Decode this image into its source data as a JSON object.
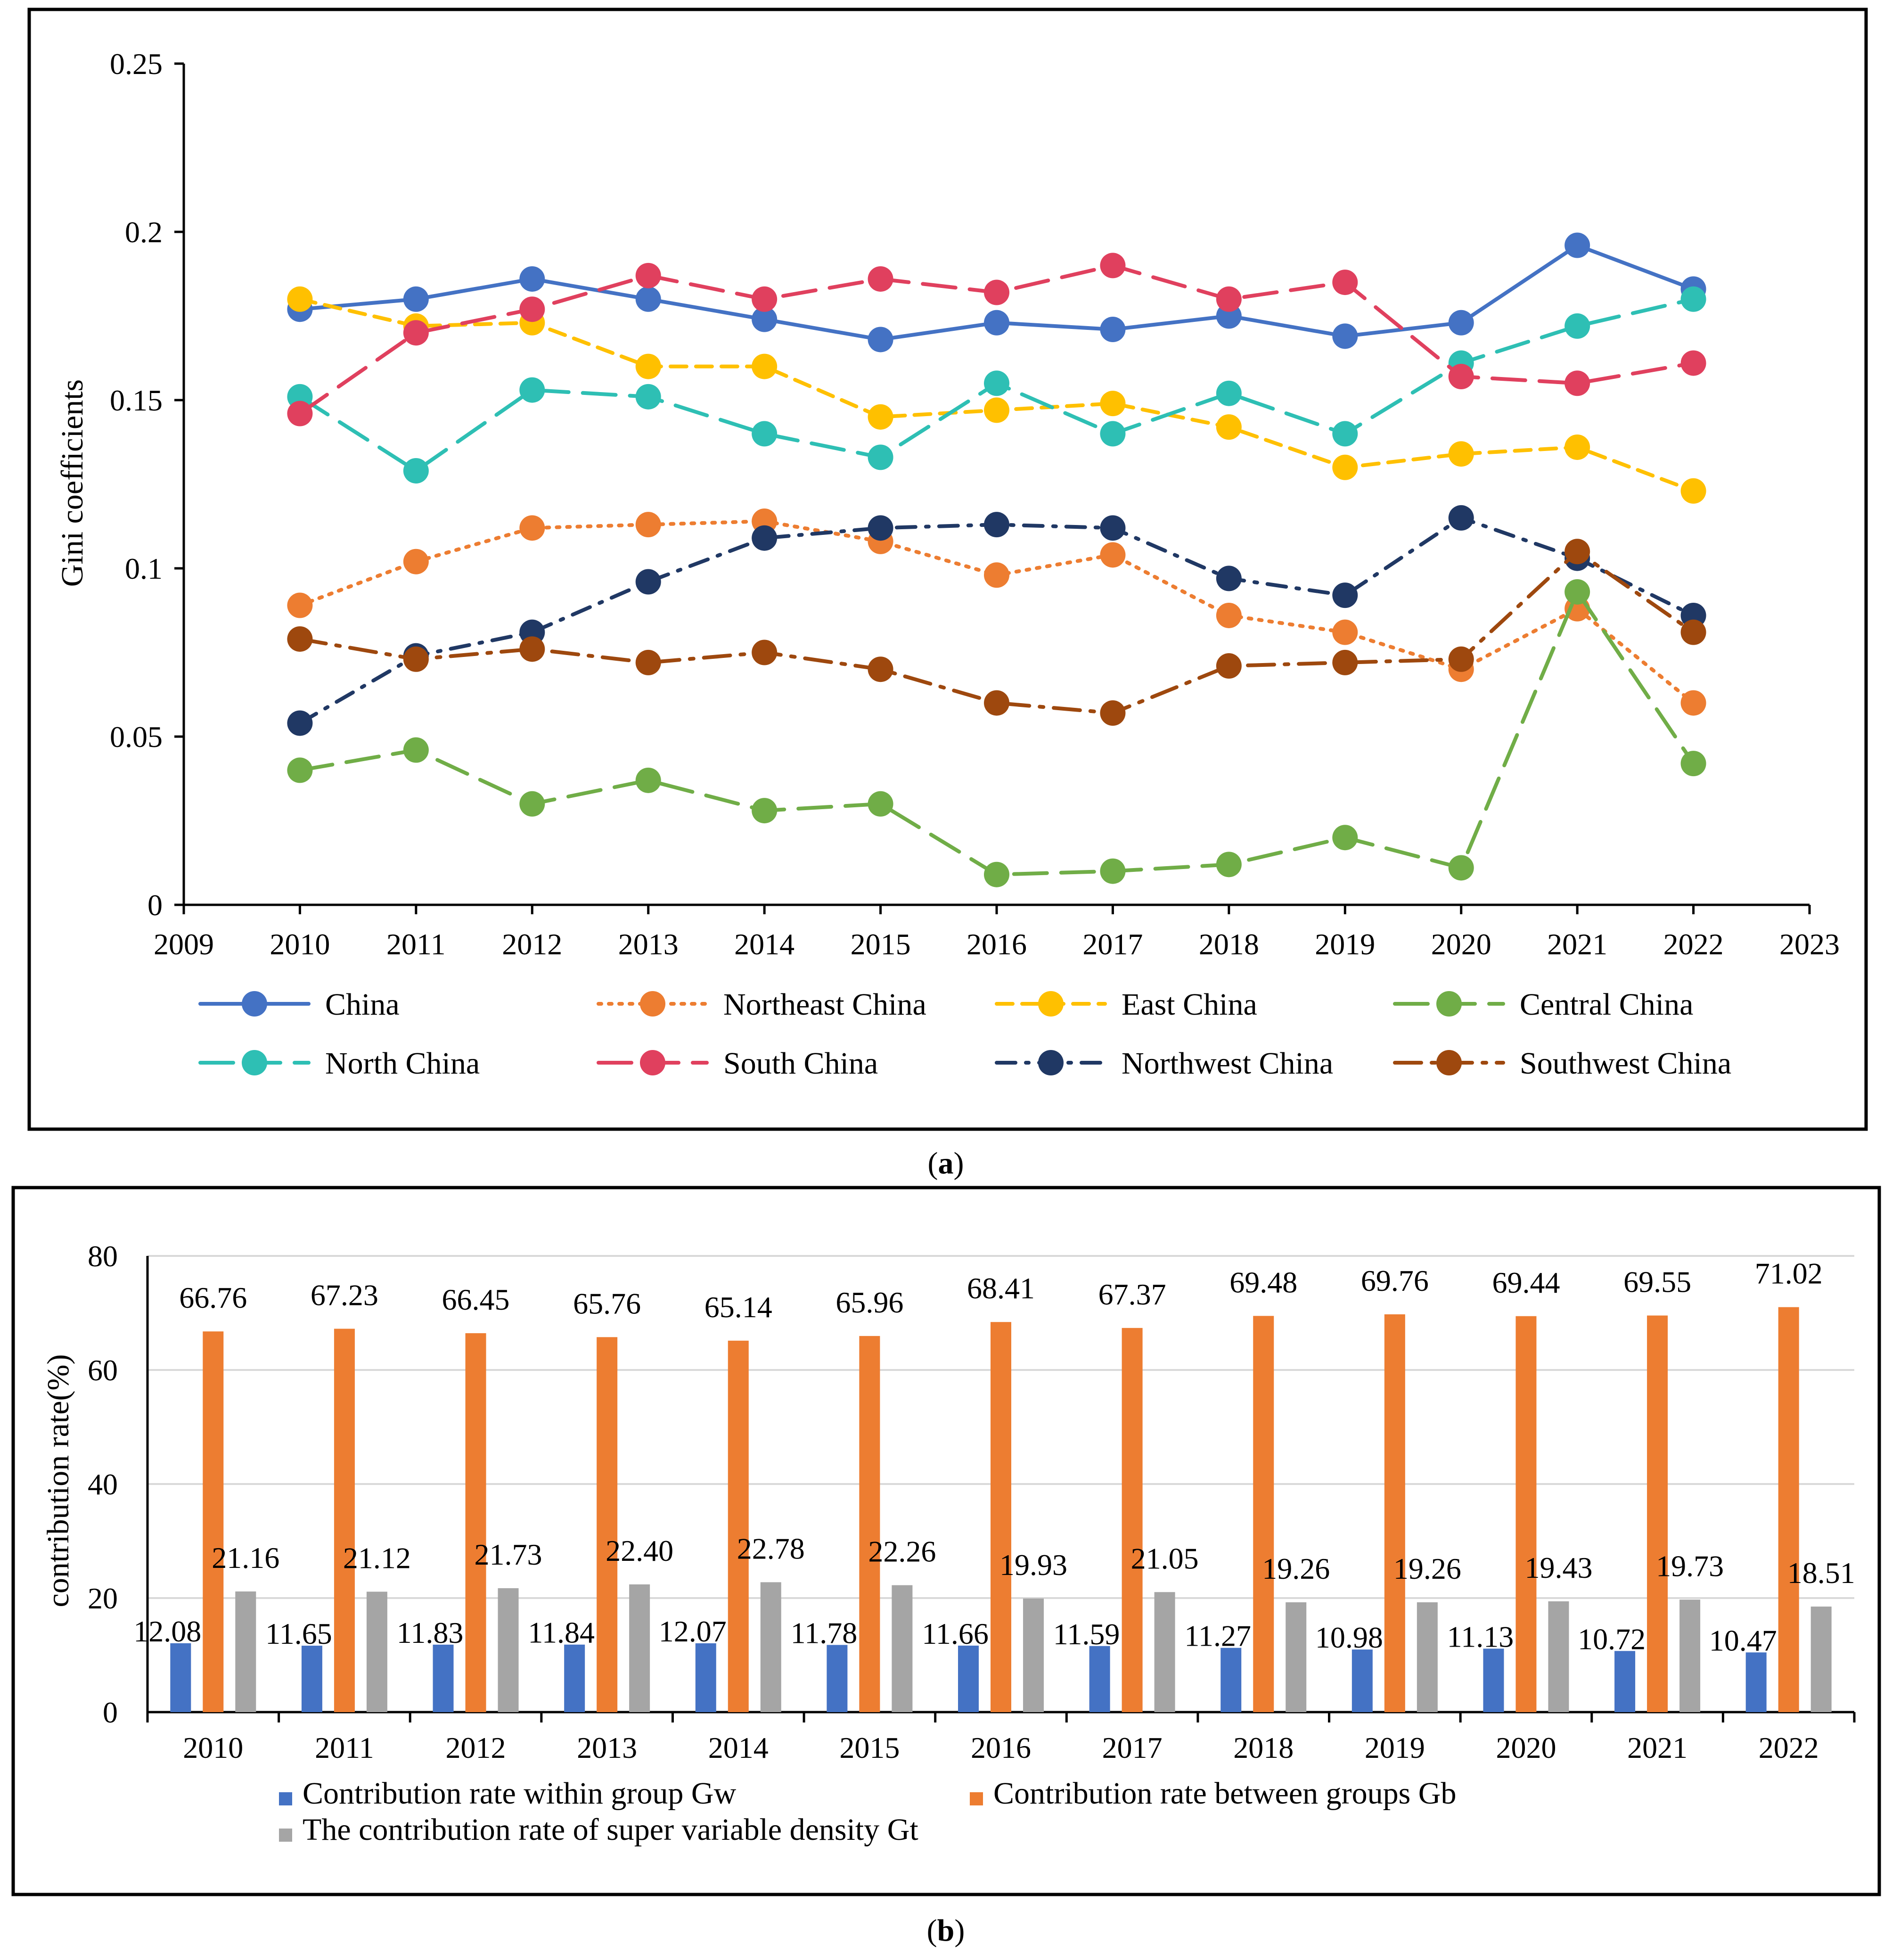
{
  "panel_a_caption": {
    "open": "(",
    "letter": "a",
    "close": ")"
  },
  "panel_b_caption": {
    "open": "(",
    "letter": "b",
    "close": ")"
  },
  "chart_data": [
    {
      "type": "line",
      "panel": "a",
      "title": "",
      "xlabel": "",
      "ylabel": "Gini coefficients",
      "xlim": [
        2009,
        2023
      ],
      "ylim": [
        0,
        0.25
      ],
      "x_ticks": [
        "2009",
        "2010",
        "2011",
        "2012",
        "2013",
        "2014",
        "2015",
        "2016",
        "2017",
        "2018",
        "2019",
        "2020",
        "2021",
        "2022",
        "2023"
      ],
      "y_ticks": [
        "0",
        "0.05",
        "0.1",
        "0.15",
        "0.2",
        "0.25"
      ],
      "grid": false,
      "legend_position": "bottom",
      "x": [
        2010,
        2011,
        2012,
        2013,
        2014,
        2015,
        2016,
        2017,
        2018,
        2019,
        2020,
        2021,
        2022
      ],
      "series": [
        {
          "name": "China",
          "color": "#4472c4",
          "dash": "solid",
          "values": [
            0.177,
            0.18,
            0.186,
            0.18,
            0.174,
            0.168,
            0.173,
            0.171,
            0.175,
            0.169,
            0.173,
            0.196,
            0.183
          ]
        },
        {
          "name": "Northeast China",
          "color": "#ed7d31",
          "dash": "dotted",
          "values": [
            0.089,
            0.102,
            0.112,
            0.113,
            0.114,
            0.108,
            0.098,
            0.104,
            0.086,
            0.081,
            0.07,
            0.088,
            0.06
          ]
        },
        {
          "name": "East China",
          "color": "#ffc000",
          "dash": "dashed",
          "values": [
            0.18,
            0.172,
            0.173,
            0.16,
            0.16,
            0.145,
            0.147,
            0.149,
            0.142,
            0.13,
            0.134,
            0.136,
            0.123
          ]
        },
        {
          "name": "Central China",
          "color": "#70ad47",
          "dash": "longdash",
          "values": [
            0.04,
            0.046,
            0.03,
            0.037,
            0.028,
            0.03,
            0.009,
            0.01,
            0.012,
            0.02,
            0.011,
            0.093,
            0.042
          ]
        },
        {
          "name": "North China",
          "color": "#2ebfb4",
          "dash": "longdash",
          "values": [
            0.151,
            0.129,
            0.153,
            0.151,
            0.14,
            0.133,
            0.155,
            0.14,
            0.152,
            0.14,
            0.161,
            0.172,
            0.18
          ]
        },
        {
          "name": "South China",
          "color": "#e0405e",
          "dash": "longdash",
          "values": [
            0.146,
            0.17,
            0.177,
            0.187,
            0.18,
            0.186,
            0.182,
            0.19,
            0.18,
            0.185,
            0.157,
            0.155,
            0.161
          ]
        },
        {
          "name": "Northwest China",
          "color": "#203864",
          "dash": "dashdot",
          "values": [
            0.054,
            0.074,
            0.081,
            0.096,
            0.109,
            0.112,
            0.113,
            0.112,
            0.097,
            0.092,
            0.115,
            0.103,
            0.086
          ]
        },
        {
          "name": "Southwest China",
          "color": "#9e480e",
          "dash": "dashdotlong",
          "values": [
            0.079,
            0.073,
            0.076,
            0.072,
            0.075,
            0.07,
            0.06,
            0.057,
            0.071,
            0.072,
            0.073,
            0.105,
            0.081
          ]
        }
      ]
    },
    {
      "type": "bar",
      "panel": "b",
      "title": "",
      "xlabel": "",
      "ylabel": "contribution rate(%)",
      "ylim": [
        0,
        80
      ],
      "y_ticks": [
        "0",
        "20",
        "40",
        "60",
        "80"
      ],
      "grid": true,
      "legend_position": "bottom",
      "categories": [
        "2010",
        "2011",
        "2012",
        "2013",
        "2014",
        "2015",
        "2016",
        "2017",
        "2018",
        "2019",
        "2020",
        "2021",
        "2022"
      ],
      "series": [
        {
          "name": "Contribution rate within group Gw",
          "color": "#4472c4",
          "values": [
            12.08,
            11.65,
            11.83,
            11.84,
            12.07,
            11.78,
            11.66,
            11.59,
            11.27,
            10.98,
            11.13,
            10.72,
            10.47
          ],
          "labels": [
            "12.08",
            "11.65",
            "11.83",
            "11.84",
            "12.07",
            "11.78",
            "11.66",
            "11.59",
            "11.27",
            "10.98",
            "11.13",
            "10.72",
            "10.47"
          ]
        },
        {
          "name": "Contribution rate between groups Gb",
          "color": "#ed7d31",
          "values": [
            66.76,
            67.23,
            66.45,
            65.76,
            65.14,
            65.96,
            68.41,
            67.37,
            69.48,
            69.76,
            69.44,
            69.55,
            71.02
          ],
          "labels": [
            "66.76",
            "67.23",
            "66.45",
            "65.76",
            "65.14",
            "65.96",
            "68.41",
            "67.37",
            "69.48",
            "69.76",
            "69.44",
            "69.55",
            "71.02"
          ]
        },
        {
          "name": "The contribution rate of super variable density Gt",
          "color": "#a5a5a5",
          "values": [
            21.16,
            21.12,
            21.73,
            22.4,
            22.78,
            22.26,
            19.93,
            21.05,
            19.26,
            19.26,
            19.43,
            19.73,
            18.51
          ],
          "labels": [
            "21.16",
            "21.12",
            "21.73",
            "22.40",
            "22.78",
            "22.26",
            "19.93",
            "21.05",
            "19.26",
            "19.26",
            "19.43",
            "19.73",
            "18.51"
          ]
        }
      ]
    }
  ]
}
